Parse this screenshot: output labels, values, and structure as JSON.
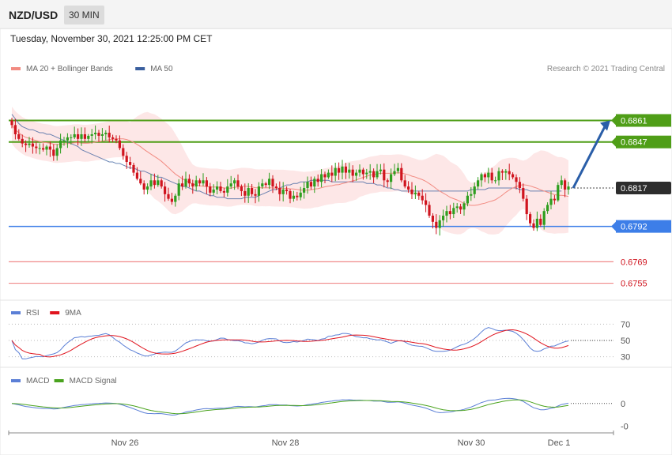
{
  "header": {
    "symbol": "NZD/USD",
    "timeframe": "30 MIN",
    "datetime": "Tuesday, November 30, 2021 12:25:00 PM CET"
  },
  "legends": {
    "main": [
      {
        "label": "MA 20 + Bollinger Bands",
        "color": "#f28b82"
      },
      {
        "label": "MA 50",
        "color": "#3a5f9e"
      }
    ],
    "credit": "Research © 2021 Trading Central",
    "rsi": [
      {
        "label": "RSI",
        "color": "#5b7fd6"
      },
      {
        "label": "9MA",
        "color": "#e0141e"
      }
    ],
    "macd": [
      {
        "label": "MACD",
        "color": "#5b7fd6"
      },
      {
        "label": "MACD Signal",
        "color": "#4aa31e"
      }
    ]
  },
  "colors": {
    "up": "#2e9e1e",
    "down": "#d0141e",
    "band_fill": "#fde3e3",
    "ma20": "#f28b82",
    "ma50": "#3a5f9e",
    "resistance": "#4f9e17",
    "support": "#3d7ee8",
    "target": "#f08a8a",
    "current": "#333333",
    "arrow": "#2a5ea8"
  },
  "chart_data": [
    {
      "type": "candlestick",
      "y_range": [
        0.6745,
        0.6888
      ],
      "x_labels": [
        "Nov 26",
        "Nov 28",
        "Nov 30",
        "Dec 1"
      ],
      "levels": [
        {
          "value": 0.6861,
          "label": "0.6861",
          "kind": "resistance"
        },
        {
          "value": 0.6847,
          "label": "0.6847",
          "kind": "resistance"
        },
        {
          "value": 0.6817,
          "label": "0.6817",
          "kind": "current"
        },
        {
          "value": 0.6792,
          "label": "0.6792",
          "kind": "support"
        },
        {
          "value": 0.6769,
          "label": "0.6769",
          "kind": "target"
        },
        {
          "value": 0.6755,
          "label": "0.6755",
          "kind": "target"
        }
      ],
      "forecast_arrow": {
        "from": 0.6817,
        "to": 0.6861
      },
      "close_series": [
        0.6858,
        0.6852,
        0.6849,
        0.6846,
        0.6845,
        0.6846,
        0.6844,
        0.6843,
        0.6843,
        0.6842,
        0.6844,
        0.6842,
        0.6838,
        0.6843,
        0.6848,
        0.6848,
        0.685,
        0.685,
        0.6852,
        0.6849,
        0.6852,
        0.6849,
        0.6851,
        0.6852,
        0.6853,
        0.6851,
        0.6852,
        0.6853,
        0.685,
        0.6849,
        0.6848,
        0.6843,
        0.6838,
        0.6834,
        0.6832,
        0.6827,
        0.6823,
        0.682,
        0.6816,
        0.6818,
        0.6822,
        0.6819,
        0.6822,
        0.6818,
        0.6813,
        0.681,
        0.6808,
        0.6812,
        0.682,
        0.6818,
        0.6823,
        0.682,
        0.6818,
        0.6822,
        0.682,
        0.6822,
        0.6818,
        0.6814,
        0.6816,
        0.6818,
        0.6815,
        0.6814,
        0.6818,
        0.682,
        0.6822,
        0.6818,
        0.6815,
        0.6812,
        0.6817,
        0.6813,
        0.6812,
        0.6818,
        0.682,
        0.6819,
        0.6823,
        0.6818,
        0.6817,
        0.6813,
        0.6816,
        0.6815,
        0.681,
        0.6812,
        0.6811,
        0.6814,
        0.6817,
        0.6821,
        0.6818,
        0.6823,
        0.6821,
        0.6826,
        0.6824,
        0.6827,
        0.6825,
        0.683,
        0.6827,
        0.6831,
        0.6827,
        0.6829,
        0.6825,
        0.6827,
        0.6829,
        0.6826,
        0.6827,
        0.6828,
        0.6824,
        0.6828,
        0.6829,
        0.6822,
        0.6821,
        0.6826,
        0.6828,
        0.683,
        0.6822,
        0.6818,
        0.6816,
        0.6813,
        0.6814,
        0.6812,
        0.6809,
        0.6806,
        0.6799,
        0.6795,
        0.6791,
        0.6796,
        0.6799,
        0.6802,
        0.68,
        0.6804,
        0.6805,
        0.6803,
        0.6807,
        0.6812,
        0.6813,
        0.6818,
        0.6822,
        0.6826,
        0.6824,
        0.6827,
        0.6822,
        0.6822,
        0.6828,
        0.6827,
        0.6828,
        0.6826,
        0.6824,
        0.6821,
        0.6817,
        0.681,
        0.68,
        0.6794,
        0.6791,
        0.6797,
        0.6793,
        0.6802,
        0.6806,
        0.681,
        0.6809,
        0.6819,
        0.6822,
        0.6816,
        0.6818
      ],
      "ma50_series": [
        0.6865,
        0.6862,
        0.6859,
        0.6857,
        0.6856,
        0.6855,
        0.6855,
        0.6854,
        0.6853,
        0.6853,
        0.6852,
        0.6852,
        0.6851,
        0.685,
        0.6849,
        0.6848,
        0.6847,
        0.6846,
        0.6845,
        0.6844,
        0.6842,
        0.6841,
        0.684,
        0.6839,
        0.6838,
        0.6837,
        0.6836,
        0.6835,
        0.6834,
        0.6834,
        0.6833,
        0.6833,
        0.6832,
        0.6831,
        0.683,
        0.683,
        0.6829,
        0.6828,
        0.6828,
        0.6827,
        0.6826,
        0.6825,
        0.6824,
        0.6824,
        0.6823,
        0.6822,
        0.6821,
        0.682,
        0.6819,
        0.6818,
        0.6818,
        0.6817,
        0.6816,
        0.6815,
        0.6815,
        0.6814,
        0.6813,
        0.6812,
        0.6812,
        0.6811,
        0.6811,
        0.6811,
        0.681,
        0.681,
        0.681,
        0.681,
        0.681,
        0.6811,
        0.6811,
        0.6811,
        0.6811,
        0.6812,
        0.6813,
        0.6814,
        0.6815,
        0.6816,
        0.6816,
        0.6817,
        0.6818,
        0.6819,
        0.6819,
        0.682,
        0.682,
        0.6821,
        0.6821,
        0.6821,
        0.6822,
        0.6822,
        0.6822,
        0.6822,
        0.6822,
        0.6822,
        0.6821,
        0.6821,
        0.6821,
        0.6821,
        0.6821,
        0.6821,
        0.6821,
        0.6821,
        0.6821,
        0.6821,
        0.682,
        0.682,
        0.682,
        0.6819,
        0.6819,
        0.6818,
        0.6817,
        0.6817,
        0.6816,
        0.6816,
        0.6815,
        0.6815,
        0.6815,
        0.6815,
        0.6815,
        0.6815,
        0.6815,
        0.6815,
        0.6815,
        0.6815,
        0.6815,
        0.6815,
        0.6815,
        0.6815,
        0.6815,
        0.6815,
        0.6815,
        0.6815,
        0.6815,
        0.6815,
        0.6816,
        0.6816,
        0.6816,
        0.6816,
        0.6816,
        0.6817,
        0.6817,
        0.6817,
        0.6817,
        0.6817,
        0.6817,
        0.6817,
        0.6817,
        0.6817,
        0.6816,
        0.6816,
        0.6816,
        0.6815,
        0.6815,
        0.6815,
        0.6815,
        0.6815,
        0.6815,
        0.6815,
        0.6815,
        0.6815,
        0.6815
      ]
    },
    {
      "type": "line",
      "name": "RSI",
      "y_range": [
        20,
        80
      ],
      "ticks": [
        70,
        50,
        30
      ],
      "ref_value": 50
    },
    {
      "type": "line",
      "name": "MACD",
      "y_range": [
        -0.0012,
        0.0008
      ],
      "ticks": [
        {
          "value": 0,
          "label": "0"
        },
        {
          "value": -0.001,
          "label": "-0"
        }
      ]
    }
  ]
}
